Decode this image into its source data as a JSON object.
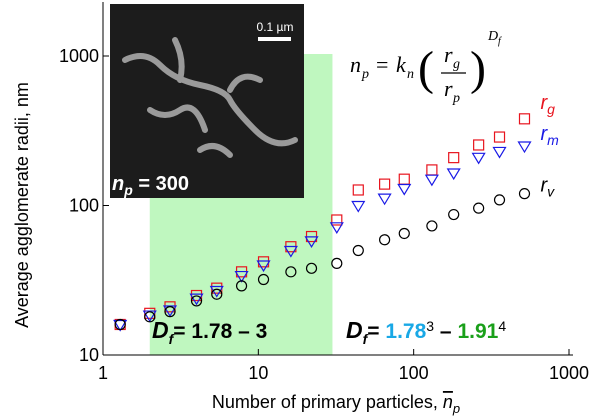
{
  "chart_data": {
    "type": "scatter",
    "x_label": [
      "Number of primary particles, ",
      "n",
      "p"
    ],
    "y_label": "Average agglomerate radii, nm",
    "xscale": "log",
    "yscale": "log",
    "xlim": [
      1,
      1000
    ],
    "ylim": [
      10,
      1000
    ],
    "xticks": [
      1,
      10,
      100,
      1000
    ],
    "yticks": [
      10,
      100,
      1000
    ],
    "x": [
      1.29,
      2.0,
      2.7,
      4.0,
      5.4,
      7.8,
      10.8,
      16.2,
      22,
      32,
      44,
      65,
      87,
      131,
      181,
      262,
      357,
      517
    ],
    "series": [
      {
        "name": "r",
        "subscript": "g",
        "color": "#e8141e",
        "marker": "square",
        "values": [
          16,
          19,
          21,
          25,
          28,
          36,
          42,
          53,
          62,
          80,
          127,
          139,
          150,
          173,
          209,
          254,
          287,
          380
        ]
      },
      {
        "name": "r",
        "subscript": "m",
        "color": "#1a1ae6",
        "marker": "triangle",
        "values": [
          16,
          18.5,
          20,
          24,
          27,
          34,
          40,
          50,
          58,
          72,
          100,
          112,
          130,
          150,
          165,
          210,
          230,
          250
        ]
      },
      {
        "name": "r",
        "subscript": "v",
        "color": "#000000",
        "marker": "circle",
        "values": [
          16,
          18,
          19.5,
          23,
          25.5,
          29,
          32,
          36,
          38,
          41,
          50,
          59,
          65,
          73,
          87,
          96,
          109,
          120
        ]
      }
    ],
    "shaded_region": {
      "x": [
        2,
        30
      ],
      "color": "#bff7bf"
    },
    "equation": {
      "lhs": "n",
      "lhs_sub": "p",
      "eq": "=",
      "k": "k",
      "k_sub": "n",
      "num": "r",
      "num_sub": "g",
      "den": "r",
      "den_sub": "p",
      "exp": "D",
      "exp_sub": "f"
    },
    "inset": {
      "scale_bar": "0.1 µm",
      "label": "n",
      "label_sub": "p",
      "label_rest": " =  300"
    },
    "annotations": [
      {
        "parts": [
          {
            "text": "D",
            "color": "#000000"
          },
          {
            "text": "f",
            "sub": true,
            "color": "#000000"
          },
          {
            "text": "= 1.78 – 3",
            "color": "#000000"
          }
        ]
      },
      {
        "parts": [
          {
            "text": "D",
            "color": "#000000"
          },
          {
            "text": "f",
            "sub": true,
            "color": "#000000"
          },
          {
            "text": "= ",
            "color": "#000000"
          },
          {
            "text": "1.78",
            "color": "#19a8e6"
          },
          {
            "text": "3",
            "sup": true,
            "color": "#000000"
          },
          {
            "text": " – ",
            "color": "#000000"
          },
          {
            "text": "1.91",
            "color": "#1aa01a"
          },
          {
            "text": "4",
            "sup": true,
            "color": "#000000"
          }
        ]
      }
    ]
  }
}
